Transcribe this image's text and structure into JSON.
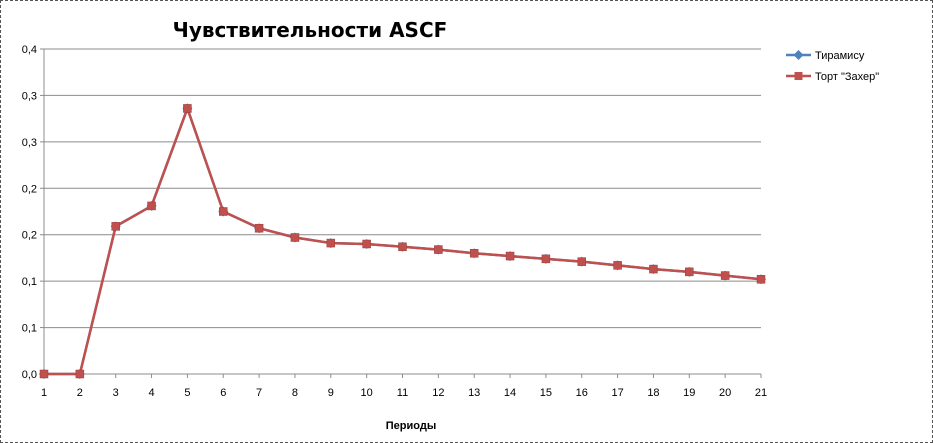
{
  "chart_data": {
    "type": "line",
    "title": "Чувствительности ASCF",
    "xlabel": "Периоды",
    "ylabel": "",
    "categories": [
      "1",
      "2",
      "3",
      "4",
      "5",
      "6",
      "7",
      "8",
      "9",
      "10",
      "11",
      "12",
      "13",
      "14",
      "15",
      "16",
      "17",
      "18",
      "19",
      "20",
      "21"
    ],
    "y_tick_labels": [
      "0,0",
      "0,1",
      "0,1",
      "0,2",
      "0,2",
      "0,3",
      "0,3",
      "0,4"
    ],
    "ylim": [
      0,
      0.35
    ],
    "grid": true,
    "legend_position": "right",
    "series": [
      {
        "name": "Тирамису",
        "color": "#4F81BD",
        "marker": "diamond",
        "values": [
          0.0,
          0.0,
          0.159,
          0.181,
          0.286,
          0.175,
          0.157,
          0.147,
          0.141,
          0.14,
          0.137,
          0.134,
          0.13,
          0.127,
          0.124,
          0.121,
          0.117,
          0.113,
          0.11,
          0.106,
          0.102
        ]
      },
      {
        "name": "Торт \"Захер\"",
        "color": "#C0504D",
        "marker": "square",
        "values": [
          0.0,
          0.0,
          0.159,
          0.181,
          0.286,
          0.175,
          0.157,
          0.147,
          0.141,
          0.14,
          0.137,
          0.134,
          0.13,
          0.127,
          0.124,
          0.121,
          0.117,
          0.113,
          0.11,
          0.106,
          0.102
        ]
      }
    ]
  }
}
